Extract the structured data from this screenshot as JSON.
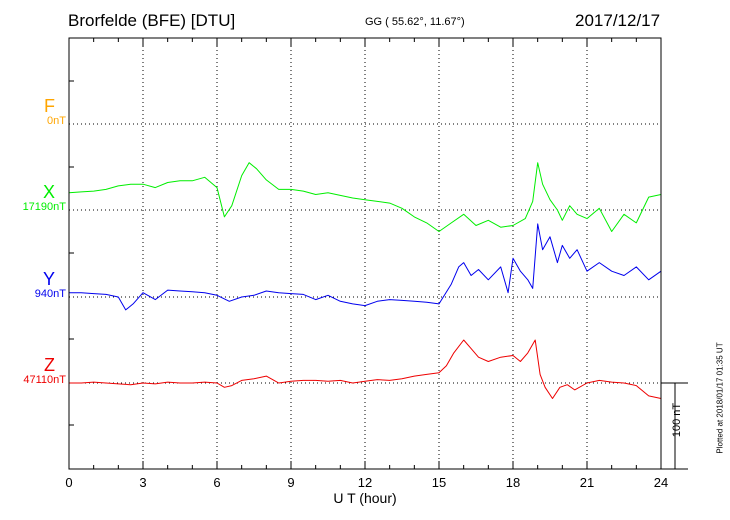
{
  "header": {
    "station": "Brorfelde (BFE)  [DTU]",
    "coords": "GG ( 55.62°,  11.67°)",
    "date": "2017/12/17"
  },
  "footer_note": "Plotted at 2018/01/17 01:35 UT",
  "chart_data": {
    "type": "line",
    "xlabel": "U T (hour)",
    "xlim": [
      0,
      24
    ],
    "x_ticks": [
      "0",
      "3",
      "6",
      "9",
      "12",
      "15",
      "18",
      "21",
      "24"
    ],
    "scale_bar_label": "100 nT",
    "series": [
      {
        "name": "F",
        "baseline_label": "0nT",
        "color": "#ffa500",
        "values": []
      },
      {
        "name": "X",
        "baseline_label": "17190nT",
        "color": "#00ee00",
        "hours": [
          0,
          0.5,
          1,
          1.5,
          2,
          2.5,
          3,
          3.5,
          4,
          4.5,
          5,
          5.5,
          6,
          6.3,
          6.6,
          7,
          7.3,
          7.6,
          8,
          8.5,
          9,
          9.5,
          10,
          10.5,
          11,
          11.5,
          12,
          12.5,
          13,
          13.5,
          14,
          14.5,
          15,
          15.5,
          16,
          16.5,
          17,
          17.5,
          18,
          18.5,
          18.8,
          19,
          19.2,
          19.5,
          19.8,
          20,
          20.3,
          20.6,
          21,
          21.5,
          22,
          22.5,
          23,
          23.5,
          24
        ],
        "values": [
          20,
          21,
          22,
          24,
          28,
          30,
          30,
          26,
          32,
          34,
          34,
          38,
          26,
          -8,
          5,
          40,
          55,
          48,
          35,
          24,
          24,
          22,
          18,
          20,
          17,
          14,
          12,
          10,
          8,
          2,
          -8,
          -15,
          -25,
          -15,
          -5,
          -18,
          -12,
          -20,
          -18,
          -10,
          10,
          55,
          30,
          12,
          0,
          -12,
          5,
          -5,
          -10,
          2,
          -25,
          -5,
          -15,
          15,
          18
        ]
      },
      {
        "name": "Y",
        "baseline_label": "940nT",
        "color": "#0000ee",
        "hours": [
          0,
          0.5,
          1,
          1.5,
          2,
          2.3,
          2.6,
          3,
          3.5,
          4,
          4.5,
          5,
          5.5,
          6,
          6.5,
          7,
          7.5,
          8,
          8.5,
          9,
          9.5,
          10,
          10.5,
          11,
          11.5,
          12,
          12.5,
          13,
          13.5,
          14,
          14.5,
          15,
          15.5,
          15.8,
          16,
          16.3,
          16.6,
          17,
          17.5,
          17.8,
          18,
          18.3,
          18.6,
          18.8,
          19,
          19.2,
          19.5,
          19.8,
          20,
          20.3,
          20.6,
          21,
          21.5,
          22,
          22.5,
          23,
          23.5,
          24
        ],
        "values": [
          5,
          5,
          4,
          3,
          0,
          -15,
          -8,
          5,
          -3,
          8,
          7,
          6,
          5,
          2,
          -5,
          0,
          2,
          7,
          5,
          4,
          3,
          -3,
          2,
          -5,
          -8,
          -10,
          -5,
          -3,
          -4,
          -5,
          -6,
          -8,
          15,
          35,
          40,
          25,
          32,
          20,
          35,
          5,
          45,
          30,
          20,
          10,
          85,
          55,
          70,
          40,
          60,
          45,
          55,
          30,
          40,
          30,
          25,
          35,
          20,
          30
        ]
      },
      {
        "name": "Z",
        "baseline_label": "47110nT",
        "color": "#ee0000",
        "hours": [
          0,
          0.5,
          1,
          1.5,
          2,
          2.5,
          3,
          3.5,
          4,
          4.5,
          5,
          5.5,
          6,
          6.3,
          6.6,
          7,
          7.5,
          8,
          8.5,
          9,
          9.5,
          10,
          10.5,
          11,
          11.5,
          12,
          12.5,
          13,
          13.5,
          14,
          14.5,
          15,
          15.3,
          15.6,
          16,
          16.3,
          16.6,
          17,
          17.5,
          18,
          18.3,
          18.6,
          18.9,
          19.1,
          19.3,
          19.6,
          19.9,
          20.2,
          20.5,
          21,
          21.5,
          22,
          22.5,
          23,
          23.5,
          24
        ],
        "values": [
          0,
          0,
          1,
          0,
          -1,
          -2,
          0,
          -1,
          1,
          0,
          0,
          1,
          0,
          -5,
          -3,
          3,
          5,
          8,
          0,
          2,
          3,
          3,
          2,
          3,
          0,
          2,
          4,
          3,
          5,
          8,
          10,
          12,
          20,
          35,
          50,
          40,
          30,
          25,
          30,
          32,
          25,
          35,
          50,
          10,
          -5,
          -18,
          -5,
          -2,
          -8,
          0,
          3,
          1,
          0,
          -3,
          -15,
          -18
        ]
      }
    ]
  }
}
